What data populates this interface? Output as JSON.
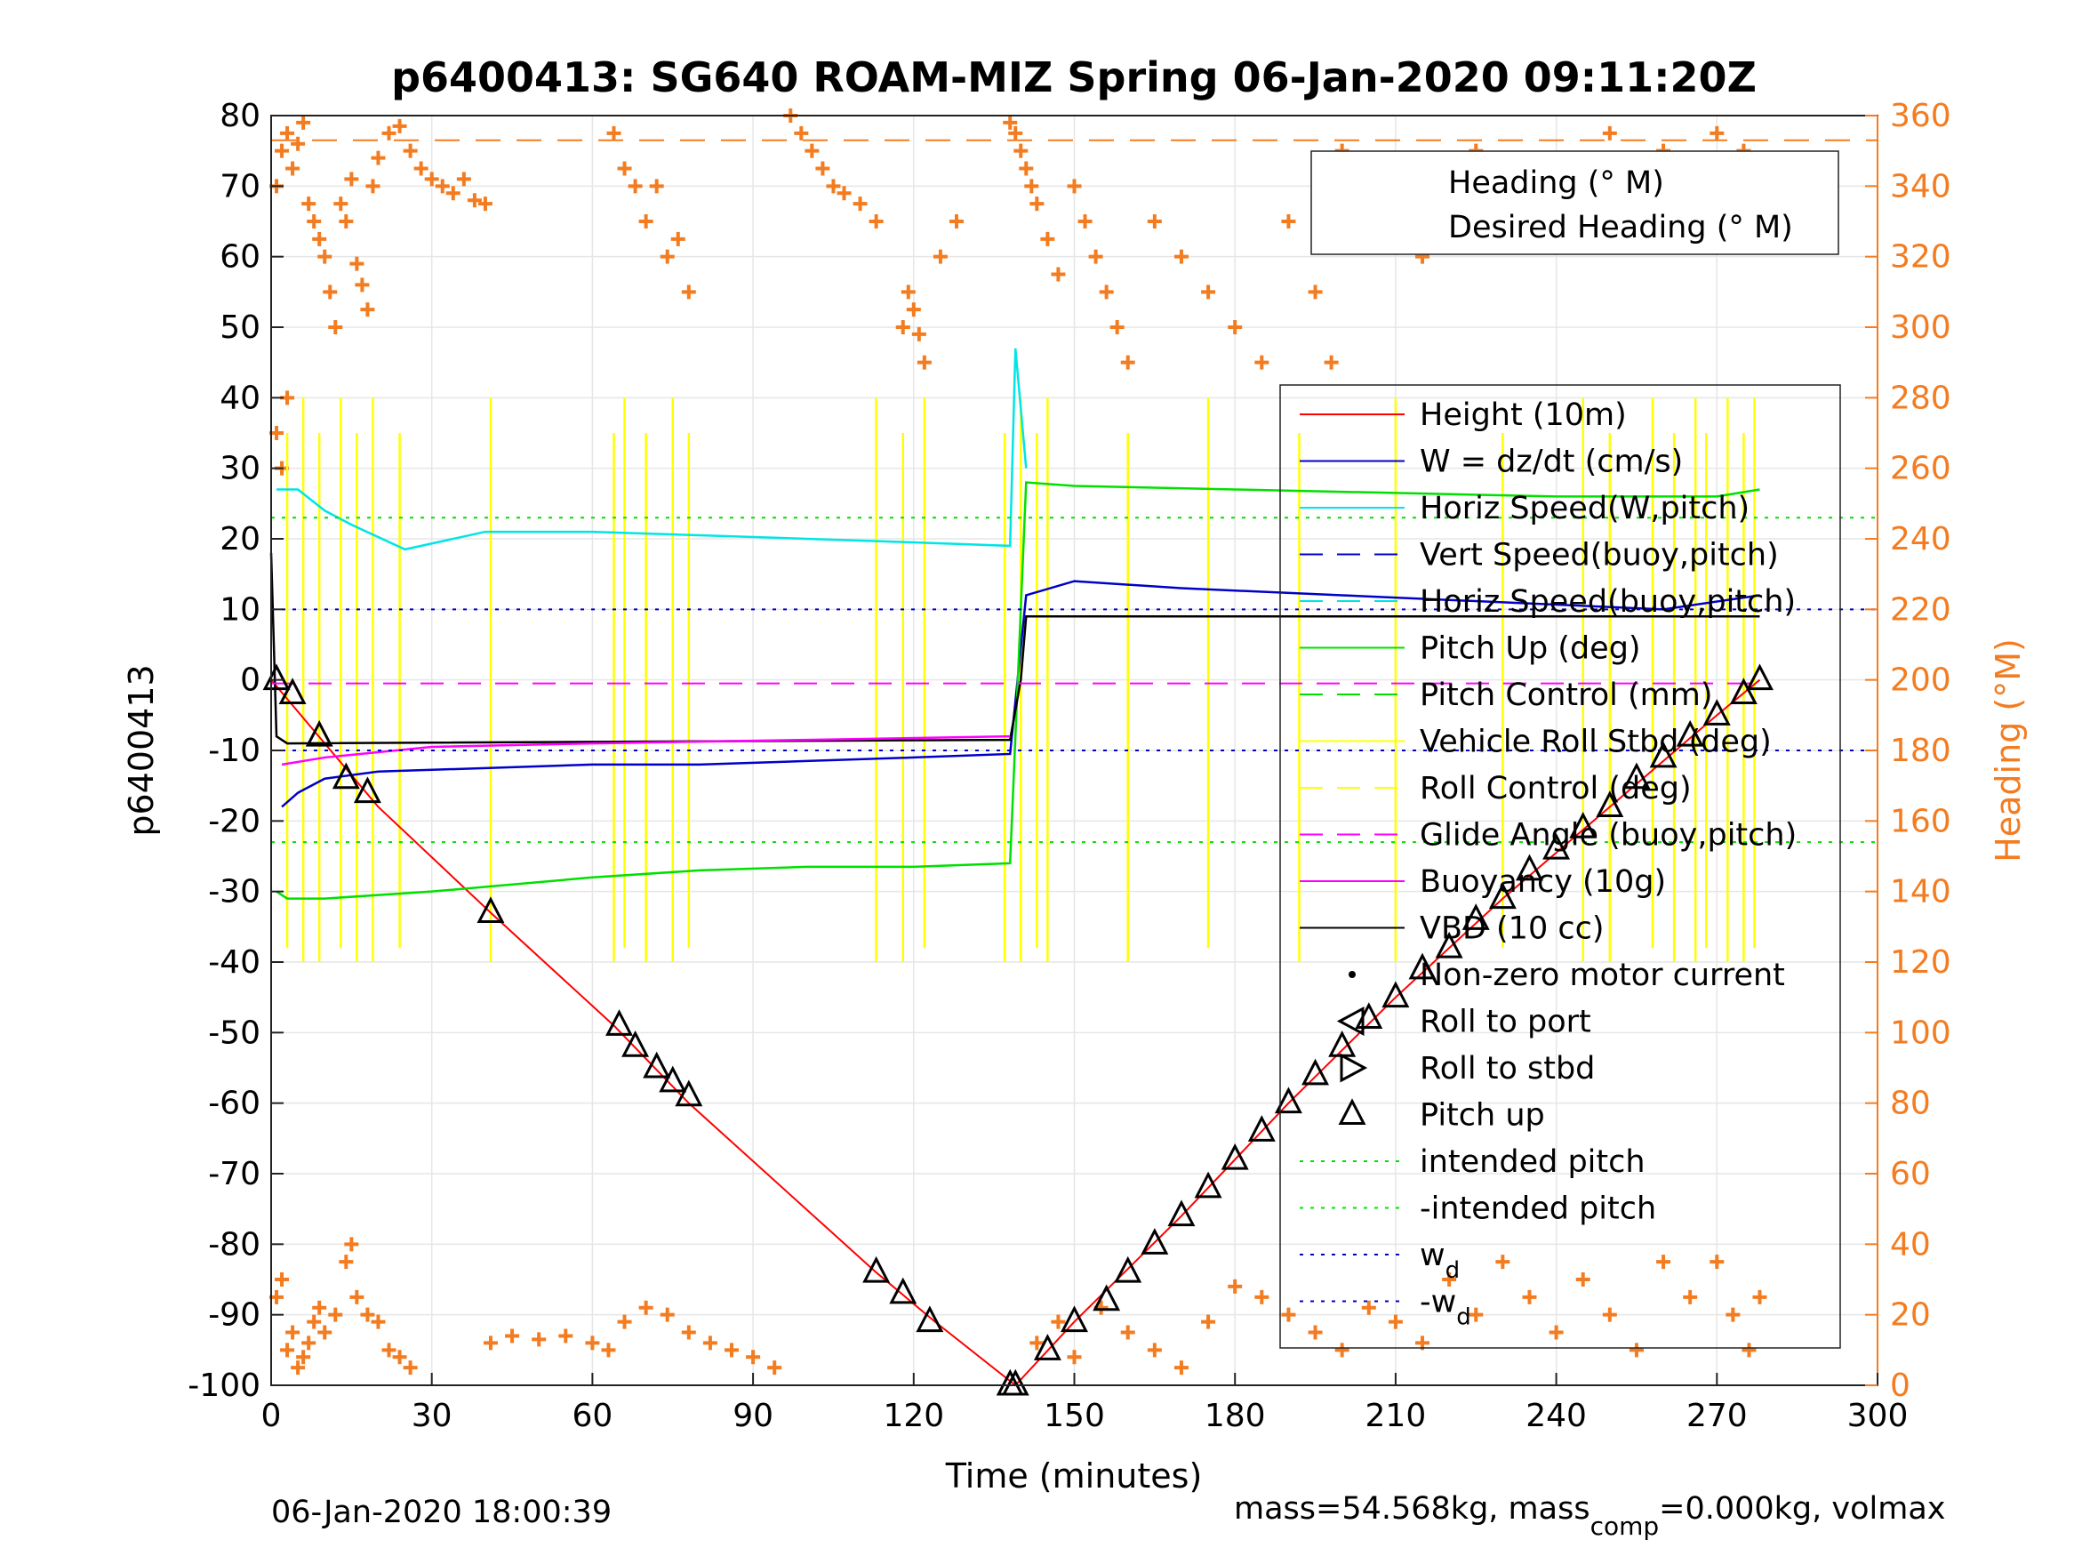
{
  "colors": {
    "heading": "#f47c20",
    "height": "#ff0000",
    "w": "#0000c8",
    "horiz_speed": "#00e5e5",
    "pitch": "#00e000",
    "roll": "#ffff00",
    "glide": "#ff00ff",
    "vbd": "#000000"
  },
  "chart_data": {
    "type": "line",
    "title": "p6400413: SG640 ROAM-MIZ Spring 06-Jan-2020 09:11:20Z",
    "xlabel": "Time (minutes)",
    "ylabel": "p6400413",
    "y2label": "Heading (°M)",
    "xlim": [
      0,
      300
    ],
    "ylim": [
      -100,
      80
    ],
    "y2lim": [
      0,
      360
    ],
    "xticks": [
      0,
      30,
      60,
      90,
      120,
      150,
      180,
      210,
      240,
      270,
      300
    ],
    "yticks": [
      80,
      70,
      60,
      50,
      40,
      30,
      20,
      10,
      0,
      -10,
      -20,
      -30,
      -40,
      -50,
      -60,
      -70,
      -80,
      -90,
      -100
    ],
    "y2ticks": [
      360,
      340,
      320,
      300,
      280,
      260,
      240,
      220,
      200,
      180,
      160,
      140,
      120,
      100,
      80,
      60,
      40,
      20,
      0
    ],
    "grid": true,
    "legend_top": {
      "placement": "top-right",
      "entries": [
        "Heading (° M)",
        "Desired Heading (° M)"
      ]
    },
    "legend_main": {
      "placement": "right",
      "entries": [
        "Height (10m)",
        "W = dz/dt (cm/s)",
        "Horiz Speed(W,pitch)",
        "Vert Speed(buoy,pitch)",
        "Horiz Speed(buoy,pitch)",
        "Pitch Up (deg)",
        "Pitch Control (mm)",
        "Vehicle Roll Stbd (deg)",
        "Roll Control (deg)",
        "Glide Angle (buoy,pitch)",
        "Buoyancy (10g)",
        "VBD (10 cc)",
        "Non-zero motor current",
        "Roll to port",
        "Roll to stbd",
        "Pitch up",
        "intended pitch",
        "-intended pitch",
        "w",
        "-w"
      ],
      "subscript": "d"
    },
    "series": [
      {
        "name": "Height (10m)",
        "x": [
          0,
          20,
          41,
          64,
          78,
          113,
          124,
          139
        ],
        "y": [
          0,
          -18,
          -33,
          -49,
          -60,
          -84,
          -91,
          -100
        ]
      },
      {
        "name": "Height (10m)",
        "x": [
          139,
          150,
          170,
          190,
          210,
          230,
          250,
          270,
          278
        ],
        "y": [
          -100,
          -91,
          -76,
          -60,
          -45,
          -31,
          -18,
          -5,
          0
        ]
      },
      {
        "name": "W = dz/dt (cm/s)",
        "x": [
          2,
          5,
          10,
          20,
          40,
          60,
          80,
          100,
          120,
          138,
          141,
          150,
          170,
          200,
          230,
          260,
          278
        ],
        "y": [
          -18,
          -16,
          -14,
          -13,
          -12.5,
          -12,
          -12,
          -11.5,
          -11,
          -10.5,
          12,
          14,
          13,
          12,
          11,
          10,
          12
        ]
      },
      {
        "name": "Horiz Speed(W,pitch)",
        "x": [
          1,
          5,
          10,
          15,
          25,
          40,
          60,
          80,
          100,
          120,
          138,
          139,
          141
        ],
        "y": [
          27,
          27,
          24,
          22,
          18.5,
          21,
          21,
          20.5,
          20,
          19.5,
          19,
          47,
          30
        ]
      },
      {
        "name": "Pitch Up (deg)",
        "x": [
          1,
          3,
          10,
          30,
          60,
          80,
          100,
          120,
          138,
          141,
          150,
          180,
          210,
          240,
          270,
          278
        ],
        "y": [
          -30,
          -31,
          -31,
          -30,
          -28,
          -27,
          -26.5,
          -26.5,
          -26,
          28,
          27.5,
          27,
          26.5,
          26,
          26,
          27
        ]
      },
      {
        "name": "VBD (10 cc)",
        "x": [
          0,
          1,
          3,
          138,
          140,
          141,
          278
        ],
        "y": [
          18,
          -8,
          -9,
          -8.5,
          0,
          9,
          9
        ]
      },
      {
        "name": "Buoyancy (10g)",
        "x": [
          2,
          10,
          30,
          60,
          100,
          138
        ],
        "y": [
          -12,
          -11,
          -9.5,
          -9,
          -8.5,
          -8
        ]
      },
      {
        "name": "Glide Angle (buoy,pitch)",
        "x": [
          0,
          278
        ],
        "y": [
          -0.5,
          -0.5
        ]
      },
      {
        "name": "intended pitch",
        "x": [
          0,
          300
        ],
        "y": [
          23,
          23
        ]
      },
      {
        "name": "-intended pitch",
        "x": [
          0,
          300
        ],
        "y": [
          -23,
          -23
        ]
      },
      {
        "name": "w",
        "x": [
          0,
          300
        ],
        "y": [
          10,
          10
        ]
      },
      {
        "name": "-w",
        "x": [
          0,
          300
        ],
        "y": [
          -10,
          -10
        ]
      }
    ],
    "desired_heading": 353,
    "heading_points": [
      [
        1,
        340
      ],
      [
        2,
        350
      ],
      [
        3,
        355
      ],
      [
        4,
        345
      ],
      [
        5,
        352
      ],
      [
        6,
        358
      ],
      [
        7,
        335
      ],
      [
        8,
        330
      ],
      [
        9,
        325
      ],
      [
        10,
        320
      ],
      [
        11,
        310
      ],
      [
        12,
        300
      ],
      [
        13,
        335
      ],
      [
        14,
        330
      ],
      [
        15,
        342
      ],
      [
        16,
        318
      ],
      [
        17,
        312
      ],
      [
        18,
        305
      ],
      [
        19,
        340
      ],
      [
        20,
        348
      ],
      [
        22,
        355
      ],
      [
        24,
        357
      ],
      [
        26,
        350
      ],
      [
        28,
        345
      ],
      [
        30,
        342
      ],
      [
        32,
        340
      ],
      [
        34,
        338
      ],
      [
        36,
        342
      ],
      [
        38,
        336
      ],
      [
        40,
        335
      ],
      [
        1,
        270
      ],
      [
        2,
        260
      ],
      [
        3,
        280
      ],
      [
        1,
        25
      ],
      [
        2,
        30
      ],
      [
        3,
        10
      ],
      [
        4,
        15
      ],
      [
        5,
        5
      ],
      [
        6,
        8
      ],
      [
        7,
        12
      ],
      [
        8,
        18
      ],
      [
        9,
        22
      ],
      [
        10,
        15
      ],
      [
        12,
        20
      ],
      [
        14,
        35
      ],
      [
        15,
        40
      ],
      [
        16,
        25
      ],
      [
        18,
        20
      ],
      [
        20,
        18
      ],
      [
        22,
        10
      ],
      [
        24,
        8
      ],
      [
        26,
        5
      ],
      [
        41,
        12
      ],
      [
        45,
        14
      ],
      [
        50,
        13
      ],
      [
        55,
        14
      ],
      [
        60,
        12
      ],
      [
        63,
        10
      ],
      [
        66,
        18
      ],
      [
        70,
        22
      ],
      [
        74,
        20
      ],
      [
        78,
        15
      ],
      [
        82,
        12
      ],
      [
        86,
        10
      ],
      [
        90,
        8
      ],
      [
        94,
        5
      ],
      [
        64,
        355
      ],
      [
        66,
        345
      ],
      [
        68,
        340
      ],
      [
        70,
        330
      ],
      [
        72,
        340
      ],
      [
        74,
        320
      ],
      [
        76,
        325
      ],
      [
        78,
        310
      ],
      [
        97,
        360
      ],
      [
        99,
        355
      ],
      [
        101,
        350
      ],
      [
        103,
        345
      ],
      [
        105,
        340
      ],
      [
        107,
        338
      ],
      [
        110,
        335
      ],
      [
        113,
        330
      ],
      [
        118,
        300
      ],
      [
        119,
        310
      ],
      [
        120,
        305
      ],
      [
        121,
        298
      ],
      [
        122,
        290
      ],
      [
        125,
        320
      ],
      [
        128,
        330
      ],
      [
        138,
        358
      ],
      [
        139,
        355
      ],
      [
        140,
        350
      ],
      [
        141,
        345
      ],
      [
        142,
        340
      ],
      [
        143,
        335
      ],
      [
        145,
        325
      ],
      [
        147,
        315
      ],
      [
        150,
        340
      ],
      [
        152,
        330
      ],
      [
        154,
        320
      ],
      [
        156,
        310
      ],
      [
        158,
        300
      ],
      [
        160,
        290
      ],
      [
        165,
        330
      ],
      [
        170,
        320
      ],
      [
        175,
        310
      ],
      [
        180,
        300
      ],
      [
        185,
        290
      ],
      [
        190,
        330
      ],
      [
        195,
        310
      ],
      [
        198,
        290
      ],
      [
        200,
        350
      ],
      [
        205,
        340
      ],
      [
        210,
        330
      ],
      [
        215,
        320
      ],
      [
        220,
        340
      ],
      [
        225,
        350
      ],
      [
        230,
        335
      ],
      [
        235,
        345
      ],
      [
        240,
        340
      ],
      [
        245,
        330
      ],
      [
        250,
        355
      ],
      [
        255,
        345
      ],
      [
        260,
        350
      ],
      [
        265,
        340
      ],
      [
        270,
        355
      ],
      [
        275,
        350
      ],
      [
        278,
        345
      ],
      [
        143,
        12
      ],
      [
        147,
        18
      ],
      [
        150,
        8
      ],
      [
        155,
        22
      ],
      [
        160,
        15
      ],
      [
        165,
        10
      ],
      [
        170,
        5
      ],
      [
        175,
        18
      ],
      [
        180,
        28
      ],
      [
        185,
        25
      ],
      [
        190,
        20
      ],
      [
        195,
        15
      ],
      [
        200,
        10
      ],
      [
        205,
        22
      ],
      [
        210,
        18
      ],
      [
        215,
        12
      ],
      [
        220,
        30
      ],
      [
        225,
        20
      ],
      [
        230,
        35
      ],
      [
        235,
        25
      ],
      [
        240,
        15
      ],
      [
        245,
        30
      ],
      [
        250,
        20
      ],
      [
        255,
        10
      ],
      [
        260,
        35
      ],
      [
        265,
        25
      ],
      [
        270,
        35
      ],
      [
        273,
        20
      ],
      [
        276,
        10
      ],
      [
        278,
        25
      ]
    ],
    "pitch_up_markers": [
      [
        1,
        0
      ],
      [
        4,
        -2
      ],
      [
        9,
        -8
      ],
      [
        14,
        -14
      ],
      [
        18,
        -16
      ],
      [
        41,
        -33
      ],
      [
        65,
        -49
      ],
      [
        68,
        -52
      ],
      [
        72,
        -55
      ],
      [
        75,
        -57
      ],
      [
        78,
        -59
      ],
      [
        113,
        -84
      ],
      [
        118,
        -87
      ],
      [
        123,
        -91
      ],
      [
        138,
        -100
      ],
      [
        139,
        -100
      ],
      [
        145,
        -95
      ],
      [
        150,
        -91
      ],
      [
        156,
        -88
      ],
      [
        160,
        -84
      ],
      [
        165,
        -80
      ],
      [
        170,
        -76
      ],
      [
        175,
        -72
      ],
      [
        180,
        -68
      ],
      [
        185,
        -64
      ],
      [
        190,
        -60
      ],
      [
        195,
        -56
      ],
      [
        200,
        -52
      ],
      [
        205,
        -48
      ],
      [
        210,
        -45
      ],
      [
        215,
        -41
      ],
      [
        220,
        -38
      ],
      [
        225,
        -34
      ],
      [
        230,
        -31
      ],
      [
        235,
        -27
      ],
      [
        240,
        -24
      ],
      [
        245,
        -21
      ],
      [
        250,
        -18
      ],
      [
        255,
        -14
      ],
      [
        260,
        -11
      ],
      [
        265,
        -8
      ],
      [
        270,
        -5
      ],
      [
        275,
        -2
      ],
      [
        278,
        0
      ]
    ]
  },
  "footer": {
    "left": "06-Jan-2020 18:00:39",
    "right_prefix": "mass=54.568kg, mass",
    "right_sub": "comp",
    "right_suffix": "=0.000kg, volmax"
  }
}
